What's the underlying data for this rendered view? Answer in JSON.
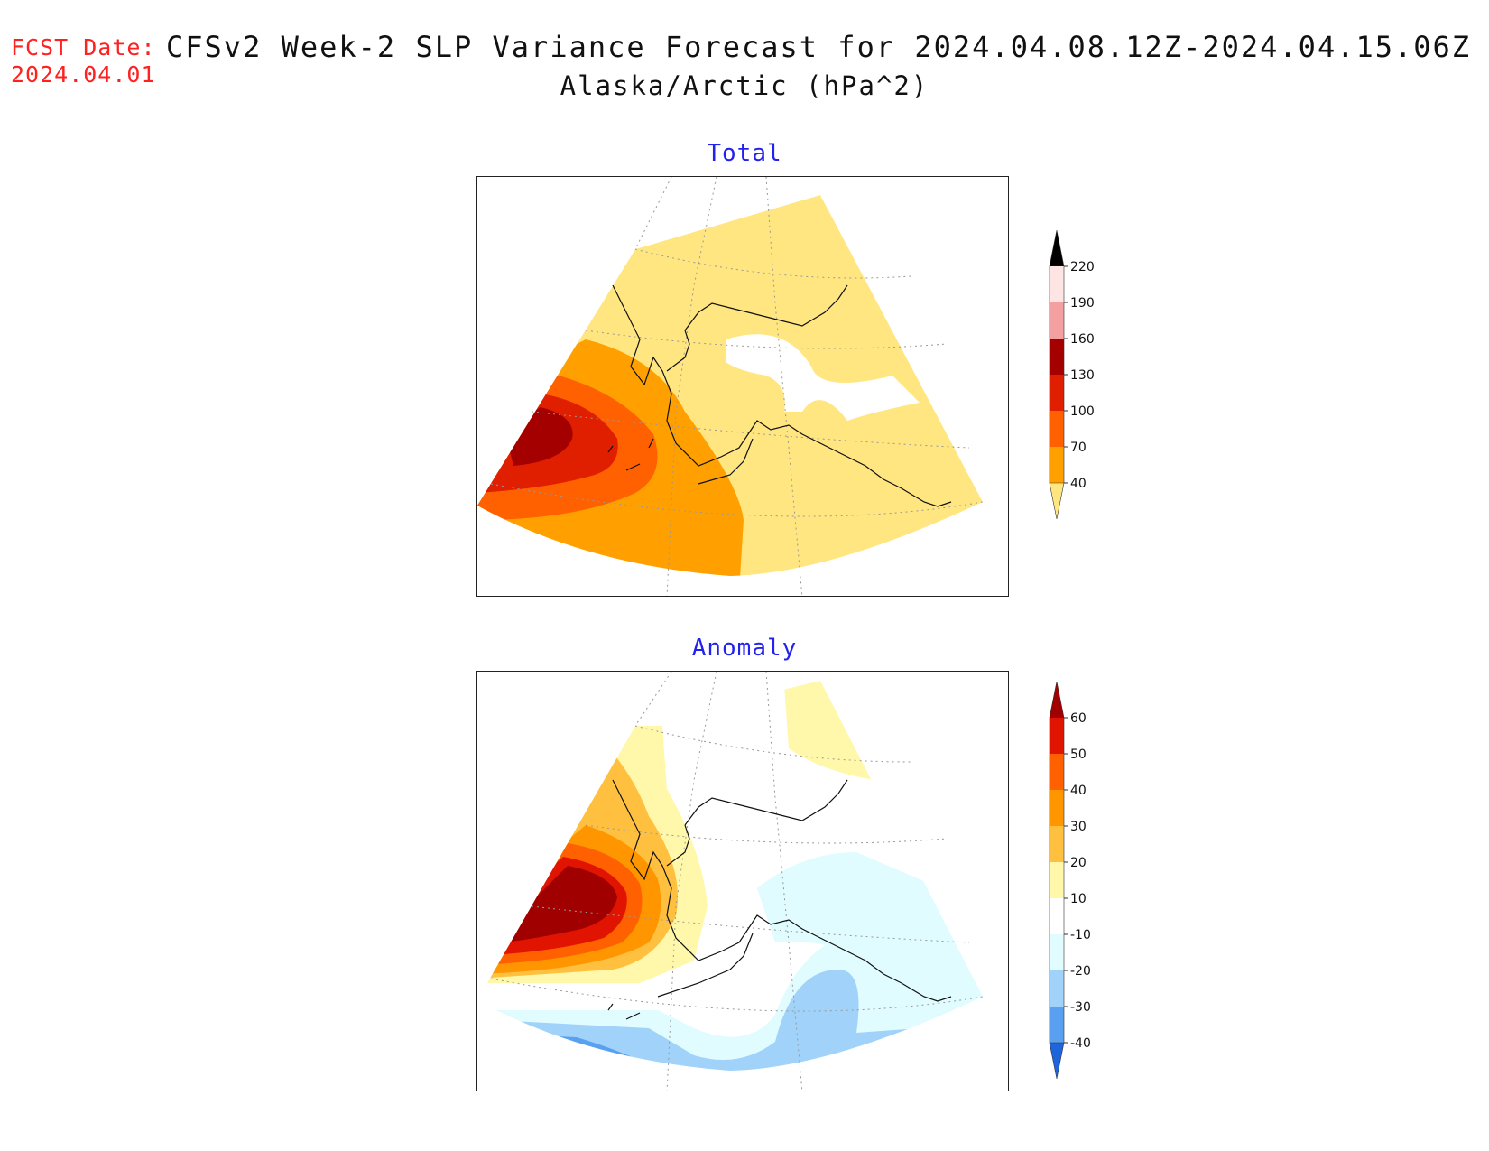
{
  "header": {
    "fcst_label": "FCST Date:",
    "fcst_date": "2024.04.01",
    "title": "CFSv2 Week-2 SLP Variance Forecast for 2024.04.08.12Z-2024.04.15.06Z",
    "subtitle": "Alaska/Arctic (hPa^2)"
  },
  "panels": [
    {
      "title": "Total",
      "colorbar": {
        "levels": [
          "40",
          "70",
          "100",
          "130",
          "160",
          "190",
          "220"
        ],
        "colors": [
          "#ffe680",
          "#ffa000",
          "#ff6000",
          "#e01e00",
          "#a50000",
          "#f4a0a0",
          "#ffe4e4"
        ]
      }
    },
    {
      "title": "Anomaly",
      "colorbar": {
        "levels": [
          "-40",
          "-30",
          "-20",
          "-10",
          "10",
          "20",
          "30",
          "40",
          "50",
          "60"
        ],
        "colors": [
          "#1e64dc",
          "#5aa0f0",
          "#a0d2fa",
          "#e0fcff",
          "#ffffff",
          "#fff8aa",
          "#ffc040",
          "#ff9600",
          "#ff6000",
          "#e01400",
          "#a00000"
        ]
      }
    }
  ]
}
